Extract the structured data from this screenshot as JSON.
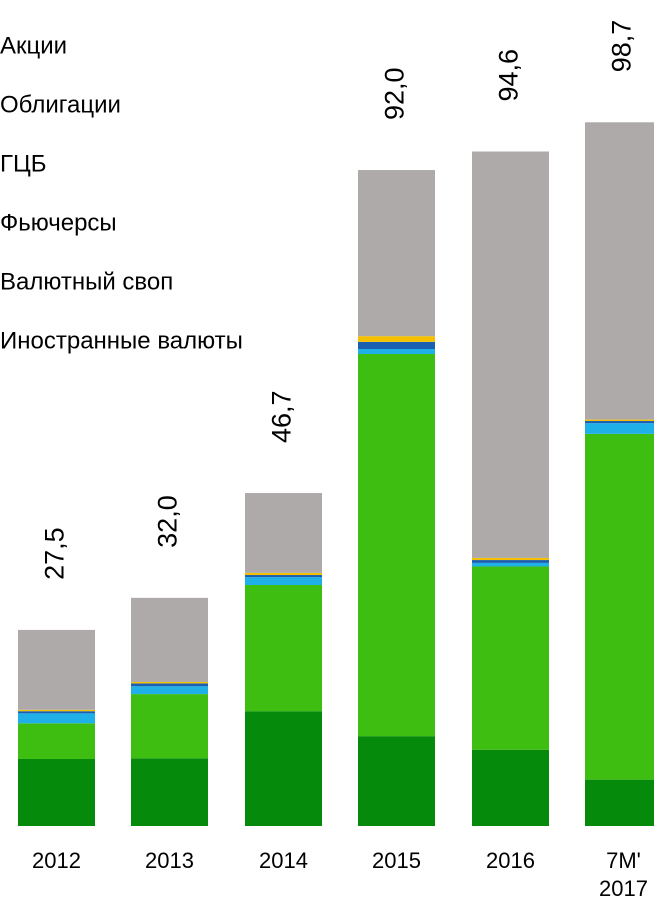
{
  "chart_data": {
    "type": "stacked_bar",
    "categories": [
      "2012",
      "2013",
      "2014",
      "2015",
      "2016",
      "7M'\n2017"
    ],
    "series": [
      {
        "name": "Иностранные валюты",
        "color": "#058a0c",
        "values": [
          9.4,
          9.5,
          16.1,
          12.6,
          10.7,
          6.5
        ]
      },
      {
        "name": "Валютный своп",
        "color": "#3fbe12",
        "values": [
          5.0,
          9.0,
          17.7,
          53.6,
          25.7,
          48.5
        ]
      },
      {
        "name": "Фьючерсы",
        "color": "#1fb0e8",
        "values": [
          1.4,
          1.1,
          1.1,
          0.7,
          0.5,
          1.5
        ]
      },
      {
        "name": "ГЦБ",
        "color": "#1a5fb0",
        "values": [
          0.3,
          0.4,
          0.3,
          1.0,
          0.4,
          0.3
        ]
      },
      {
        "name": "Облигации",
        "color": "#f5c000",
        "values": [
          0.2,
          0.2,
          0.3,
          0.8,
          0.3,
          0.2
        ]
      },
      {
        "name": "Акции",
        "color": "#aeaaaa",
        "values": [
          11.2,
          11.8,
          11.2,
          23.3,
          57.0,
          41.7
        ]
      }
    ],
    "totals": [
      27.5,
      32.0,
      46.7,
      92.0,
      94.6,
      98.7
    ],
    "total_labels": [
      "27,5",
      "32,0",
      "46,7",
      "92,0",
      "94,6",
      "98,7"
    ],
    "ylim": [
      0,
      100
    ]
  }
}
